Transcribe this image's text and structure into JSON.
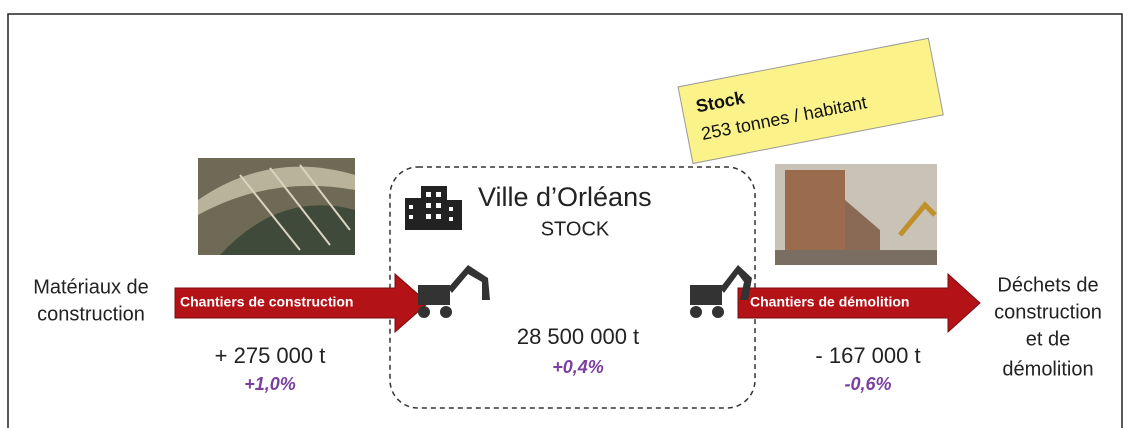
{
  "sticky_note": {
    "title": "Stock",
    "text": "253 tonnes / habitant"
  },
  "city": {
    "name": "Ville d’Orléans",
    "subtitle": "STOCK",
    "stock": "28 500 000 t",
    "change": "+0,4%"
  },
  "inflow": {
    "source_lines": [
      "Matériaux de",
      "construction"
    ],
    "arrow_label": "Chantiers de construction",
    "amount": "+ 275 000 t",
    "change": "+1,0%"
  },
  "outflow": {
    "arrow_label": "Chantiers de démolition",
    "amount": "- 167 000 t",
    "change": "-0,6%",
    "target_lines": [
      "Déchets de",
      "construction",
      "et de",
      "démolition"
    ]
  }
}
